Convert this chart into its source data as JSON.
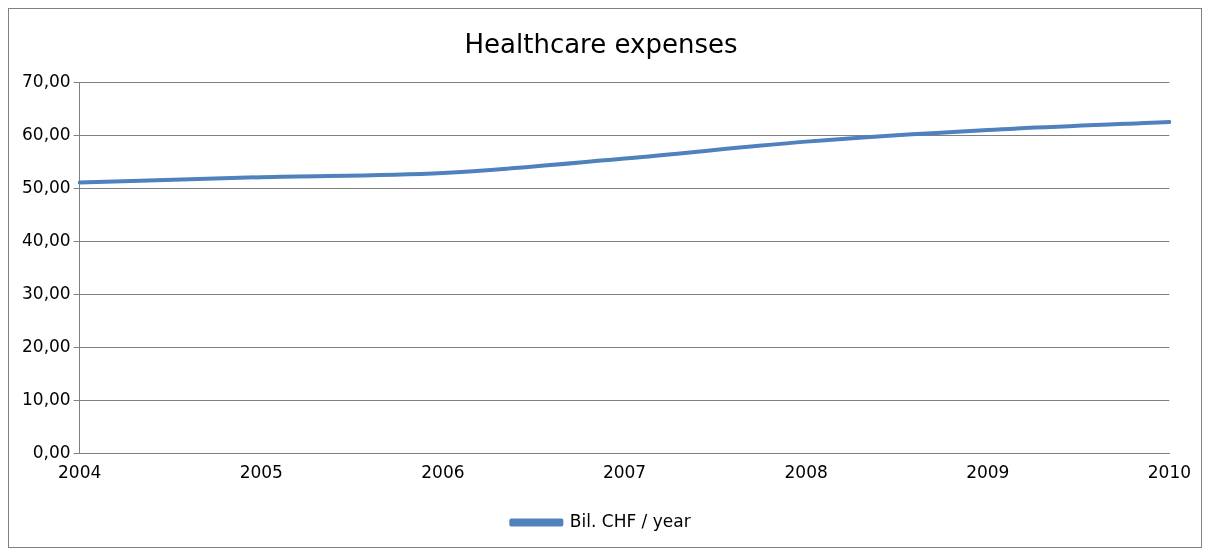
{
  "chart_data": {
    "type": "line",
    "title": "Healthcare expenses",
    "categories": [
      "2004",
      "2005",
      "2006",
      "2007",
      "2008",
      "2009",
      "2010"
    ],
    "series": [
      {
        "name": "Bil. CHF / year",
        "color": "#4f81bd",
        "values": [
          51.1,
          52.1,
          52.9,
          55.6,
          58.8,
          61.0,
          62.5
        ]
      }
    ],
    "ylim": [
      0,
      70
    ],
    "yticks": [
      {
        "value": 0,
        "label": "0,00"
      },
      {
        "value": 10,
        "label": "10,00"
      },
      {
        "value": 20,
        "label": "20,00"
      },
      {
        "value": 30,
        "label": "30,00"
      },
      {
        "value": 40,
        "label": "40,00"
      },
      {
        "value": 50,
        "label": "50,00"
      },
      {
        "value": 60,
        "label": "60,00"
      },
      {
        "value": 70,
        "label": "70,00"
      }
    ],
    "grid": "y",
    "legend": "bottom",
    "marker": "none",
    "line_style": "solid"
  }
}
